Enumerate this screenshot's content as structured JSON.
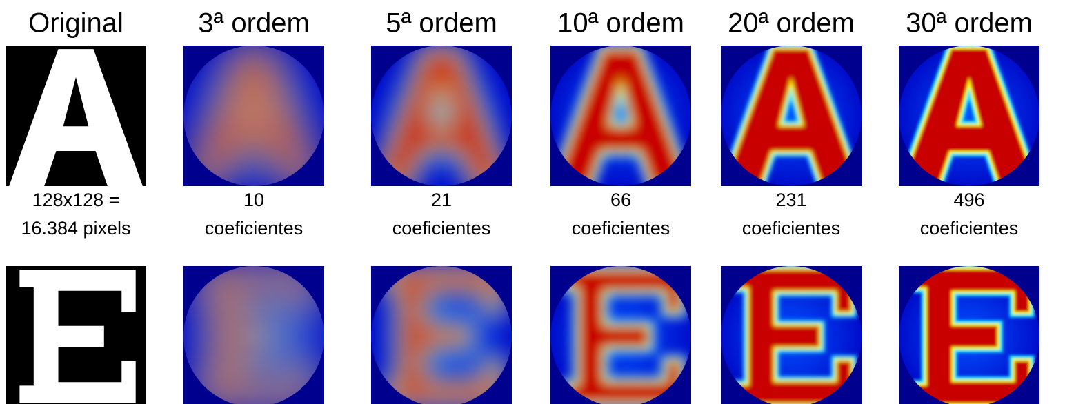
{
  "columns": [
    {
      "title": "Original",
      "caption_line1": "128x128 =",
      "caption_line2": "16.384 pixels"
    },
    {
      "title": "3ª ordem",
      "caption_line1": 10,
      "caption_line2": "coeficientes"
    },
    {
      "title": "5ª ordem",
      "caption_line1": 21,
      "caption_line2": "coeficientes"
    },
    {
      "title": "10ª ordem",
      "caption_line1": 66,
      "caption_line2": "coeficientes"
    },
    {
      "title": "20ª ordem",
      "caption_line1": 231,
      "caption_line2": "coeficientes"
    },
    {
      "title": "30ª ordem",
      "caption_line1": 496,
      "caption_line2": "coeficientes"
    }
  ]
}
